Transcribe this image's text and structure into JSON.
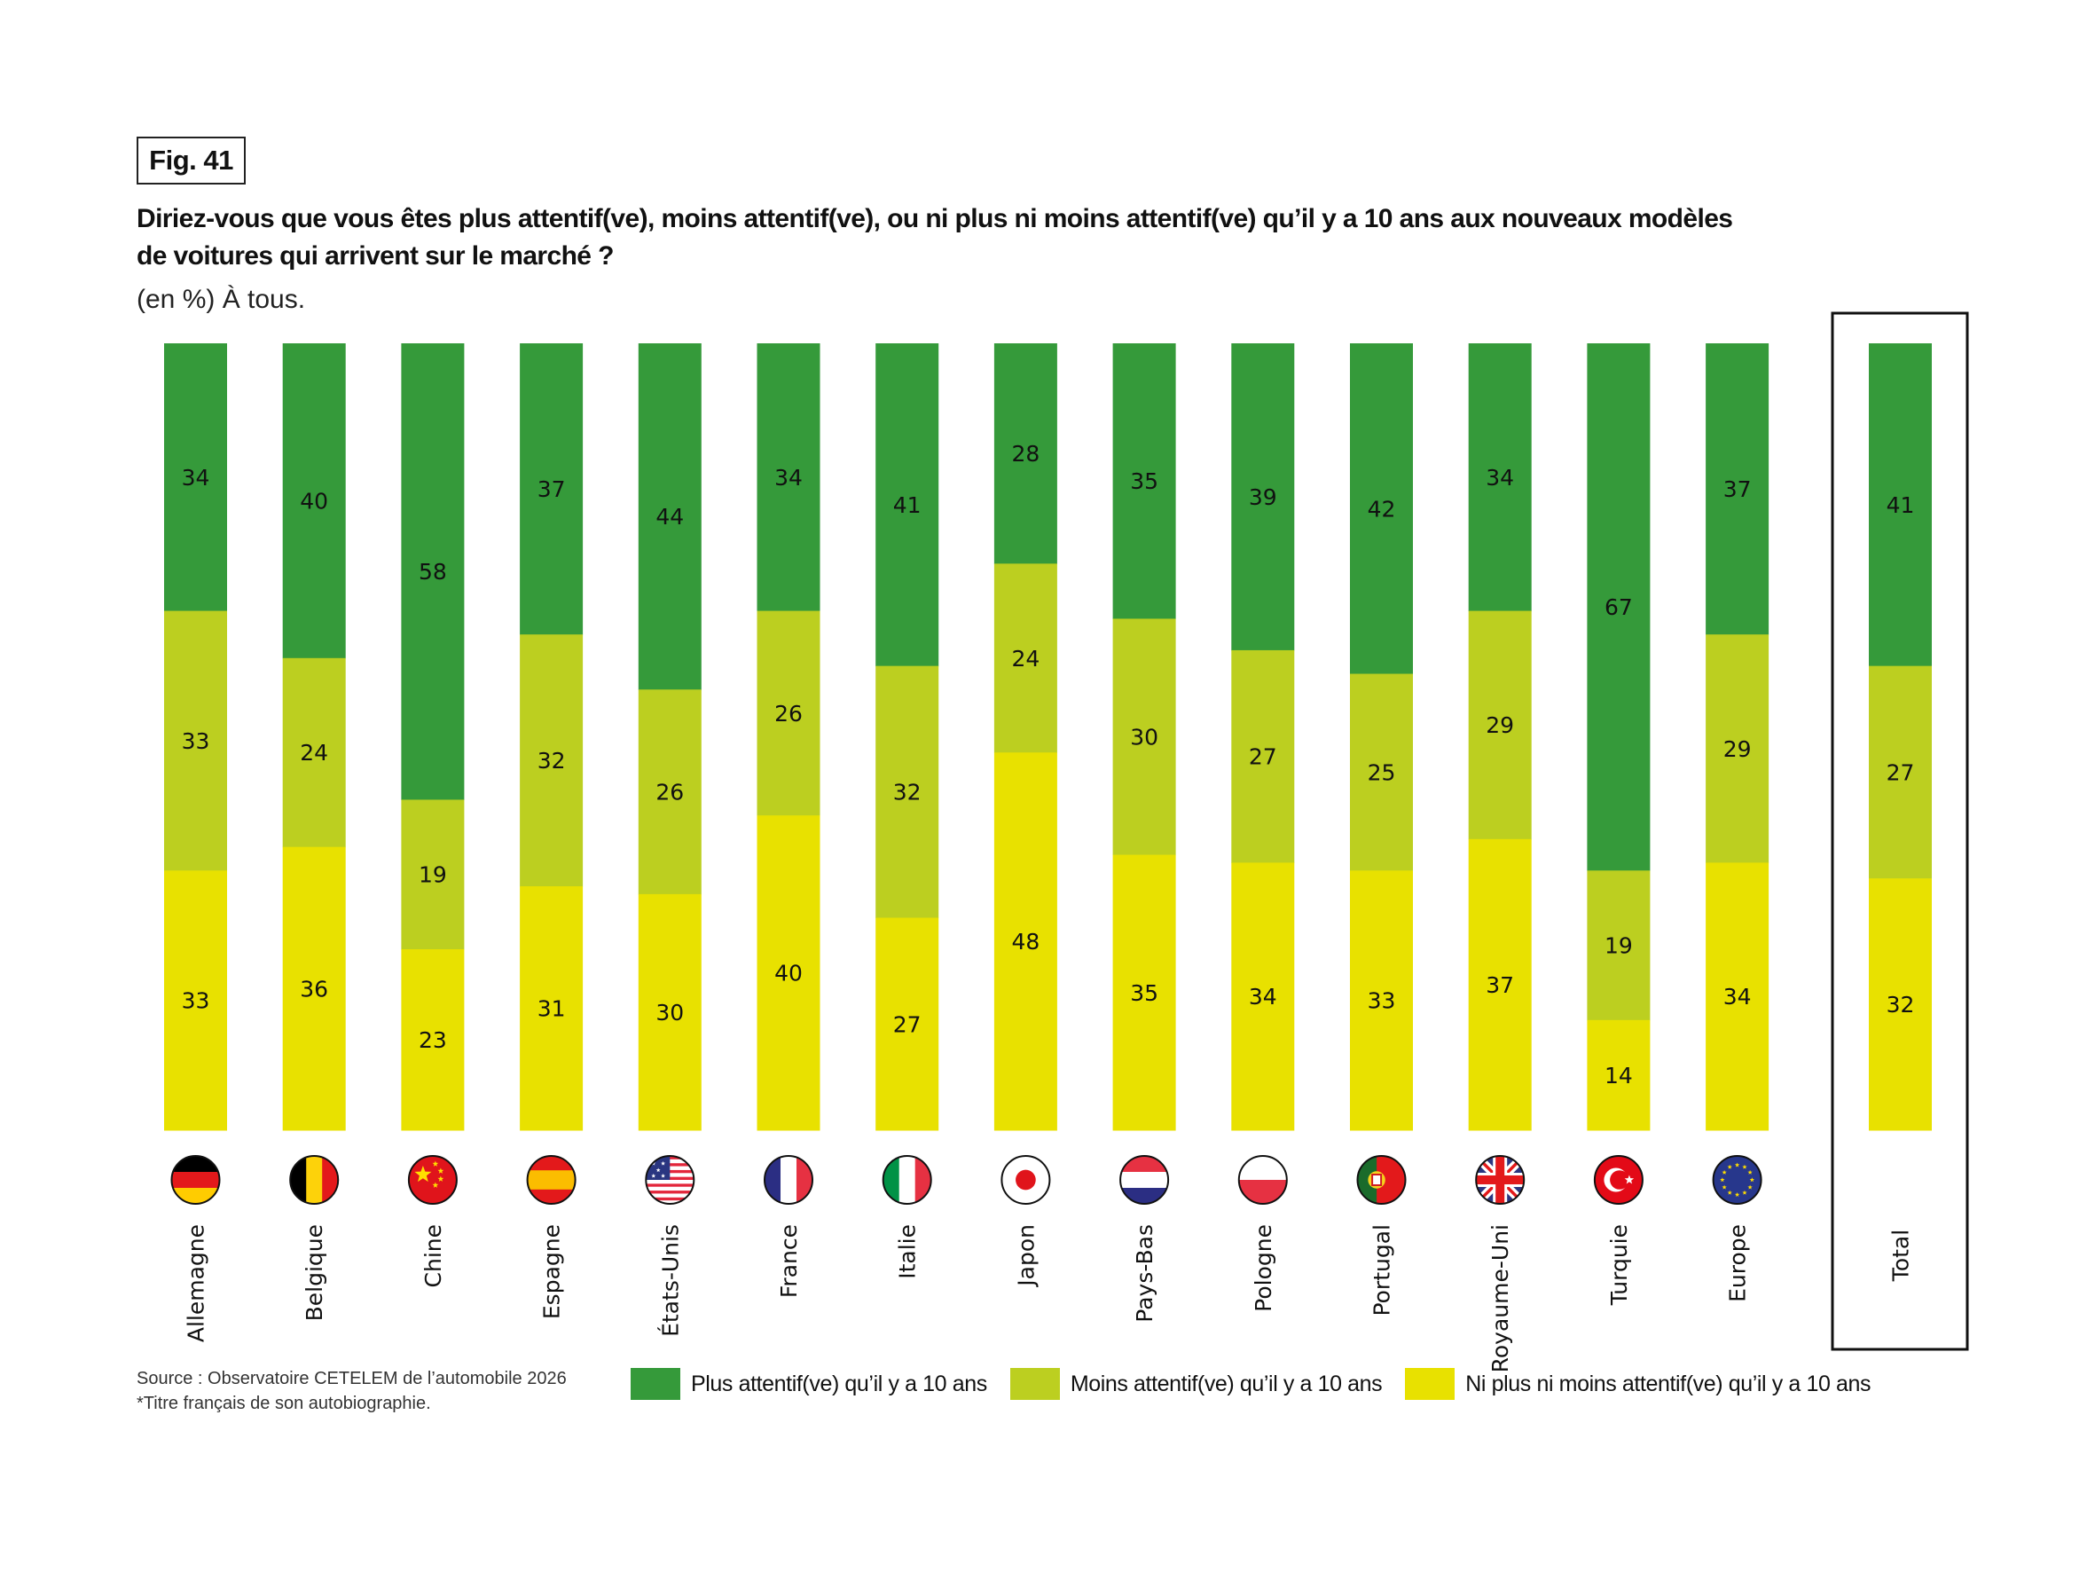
{
  "header": {
    "fig_label": "Fig. 41",
    "title_line1": "Diriez-vous que vous êtes plus attentif(ve), moins attentif(ve), ou ni plus ni moins attentif(ve) qu’il y a 10 ans aux nouveaux modèles",
    "title_line2": "de voitures qui arrivent sur le marché ?",
    "subtitle": "(en %) À tous."
  },
  "footer": {
    "source": "Source : Observatoire CETELEM de l’automobile 2026",
    "note": "*Titre français de son autobiographie."
  },
  "colors": {
    "plus": "#359a3a",
    "moins": "#bccf20",
    "ni": "#e8e100",
    "box_border": "#111111"
  },
  "chart_data": {
    "type": "bar",
    "stacked": true,
    "orientation": "vertical",
    "title": "Diriez-vous que vous êtes plus attentif(ve), moins attentif(ve), ou ni plus ni moins attentif(ve) qu’il y a 10 ans aux nouveaux modèles de voitures qui arrivent sur le marché ?",
    "subtitle": "(en %) À tous.",
    "xlabel": "",
    "ylabel": "",
    "ylim": [
      0,
      100
    ],
    "grid": false,
    "legend_position": "bottom-right",
    "categories": [
      "Allemagne",
      "Belgique",
      "Chine",
      "Espagne",
      "États-Unis",
      "France",
      "Italie",
      "Japon",
      "Pays-Bas",
      "Pologne",
      "Portugal",
      "Royaume-Uni",
      "Turquie",
      "Europe",
      "Total"
    ],
    "flags": [
      "flag-germany",
      "flag-belgium",
      "flag-china",
      "flag-spain",
      "flag-usa",
      "flag-france",
      "flag-italy",
      "flag-japan",
      "flag-netherlands",
      "flag-poland",
      "flag-portugal",
      "flag-uk",
      "flag-turkey",
      "flag-eu",
      ""
    ],
    "highlighted_category": "Total",
    "series": [
      {
        "name": "Plus attentif(ve) qu’il y a 10 ans",
        "key": "plus",
        "values": [
          34,
          40,
          58,
          37,
          44,
          34,
          41,
          28,
          35,
          39,
          42,
          34,
          67,
          37,
          41
        ]
      },
      {
        "name": "Moins attentif(ve) qu’il y a 10 ans",
        "key": "moins",
        "values": [
          33,
          24,
          19,
          32,
          26,
          26,
          32,
          24,
          30,
          27,
          25,
          29,
          19,
          29,
          27
        ]
      },
      {
        "name": "Ni plus ni moins attentif(ve) qu’il y a 10 ans",
        "key": "ni",
        "values": [
          33,
          36,
          23,
          31,
          30,
          40,
          27,
          48,
          35,
          34,
          33,
          37,
          14,
          34,
          32
        ]
      }
    ]
  }
}
